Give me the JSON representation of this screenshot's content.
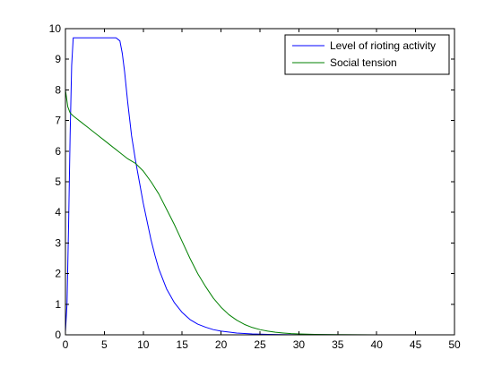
{
  "chart_data": {
    "type": "line",
    "title": "",
    "xlabel": "",
    "ylabel": "",
    "xlim": [
      0,
      50
    ],
    "ylim": [
      0,
      10
    ],
    "x_ticks": [
      0,
      5,
      10,
      15,
      20,
      25,
      30,
      35,
      40,
      45,
      50
    ],
    "y_ticks": [
      0,
      1,
      2,
      3,
      4,
      5,
      6,
      7,
      8,
      9,
      10
    ],
    "grid": false,
    "legend_position": "top-right",
    "series": [
      {
        "name": "Level of rioting activity",
        "color": "#0000ff",
        "points": [
          [
            0,
            0.1
          ],
          [
            0.2,
            1.0
          ],
          [
            0.4,
            3.5
          ],
          [
            0.6,
            6.5
          ],
          [
            0.8,
            8.8
          ],
          [
            1.0,
            9.7
          ],
          [
            1.5,
            9.7
          ],
          [
            3,
            9.7
          ],
          [
            5,
            9.7
          ],
          [
            6.5,
            9.7
          ],
          [
            7.0,
            9.6
          ],
          [
            7.3,
            9.2
          ],
          [
            7.6,
            8.6
          ],
          [
            8.0,
            7.6
          ],
          [
            8.5,
            6.5
          ],
          [
            9.0,
            5.7
          ],
          [
            9.5,
            5.0
          ],
          [
            10,
            4.3
          ],
          [
            10.5,
            3.7
          ],
          [
            11,
            3.1
          ],
          [
            11.5,
            2.6
          ],
          [
            12,
            2.15
          ],
          [
            13,
            1.5
          ],
          [
            14,
            1.05
          ],
          [
            15,
            0.73
          ],
          [
            16,
            0.5
          ],
          [
            17,
            0.35
          ],
          [
            18,
            0.25
          ],
          [
            19,
            0.17
          ],
          [
            20,
            0.12
          ],
          [
            22,
            0.06
          ],
          [
            24,
            0.03
          ],
          [
            26,
            0.015
          ],
          [
            28,
            0.008
          ],
          [
            30,
            0.004
          ],
          [
            33,
            0.002
          ],
          [
            40,
            0.0
          ],
          [
            50,
            0.0
          ]
        ]
      },
      {
        "name": "Social tension",
        "color": "#008000",
        "points": [
          [
            0,
            8.0
          ],
          [
            0.3,
            7.45
          ],
          [
            0.6,
            7.25
          ],
          [
            1,
            7.15
          ],
          [
            2,
            6.95
          ],
          [
            3,
            6.75
          ],
          [
            4,
            6.55
          ],
          [
            5,
            6.35
          ],
          [
            6,
            6.15
          ],
          [
            7,
            5.95
          ],
          [
            8,
            5.75
          ],
          [
            9,
            5.6
          ],
          [
            10,
            5.35
          ],
          [
            11,
            5.0
          ],
          [
            12,
            4.6
          ],
          [
            13,
            4.1
          ],
          [
            14,
            3.6
          ],
          [
            15,
            3.05
          ],
          [
            16,
            2.5
          ],
          [
            17,
            2.0
          ],
          [
            18,
            1.58
          ],
          [
            19,
            1.2
          ],
          [
            20,
            0.9
          ],
          [
            21,
            0.66
          ],
          [
            22,
            0.48
          ],
          [
            23,
            0.34
          ],
          [
            24,
            0.24
          ],
          [
            25,
            0.17
          ],
          [
            26,
            0.12
          ],
          [
            27,
            0.085
          ],
          [
            28,
            0.06
          ],
          [
            29,
            0.04
          ],
          [
            30,
            0.03
          ],
          [
            32,
            0.015
          ],
          [
            35,
            0.006
          ],
          [
            40,
            0.001
          ],
          [
            45,
            0.0
          ],
          [
            50,
            0.0
          ]
        ]
      }
    ]
  }
}
